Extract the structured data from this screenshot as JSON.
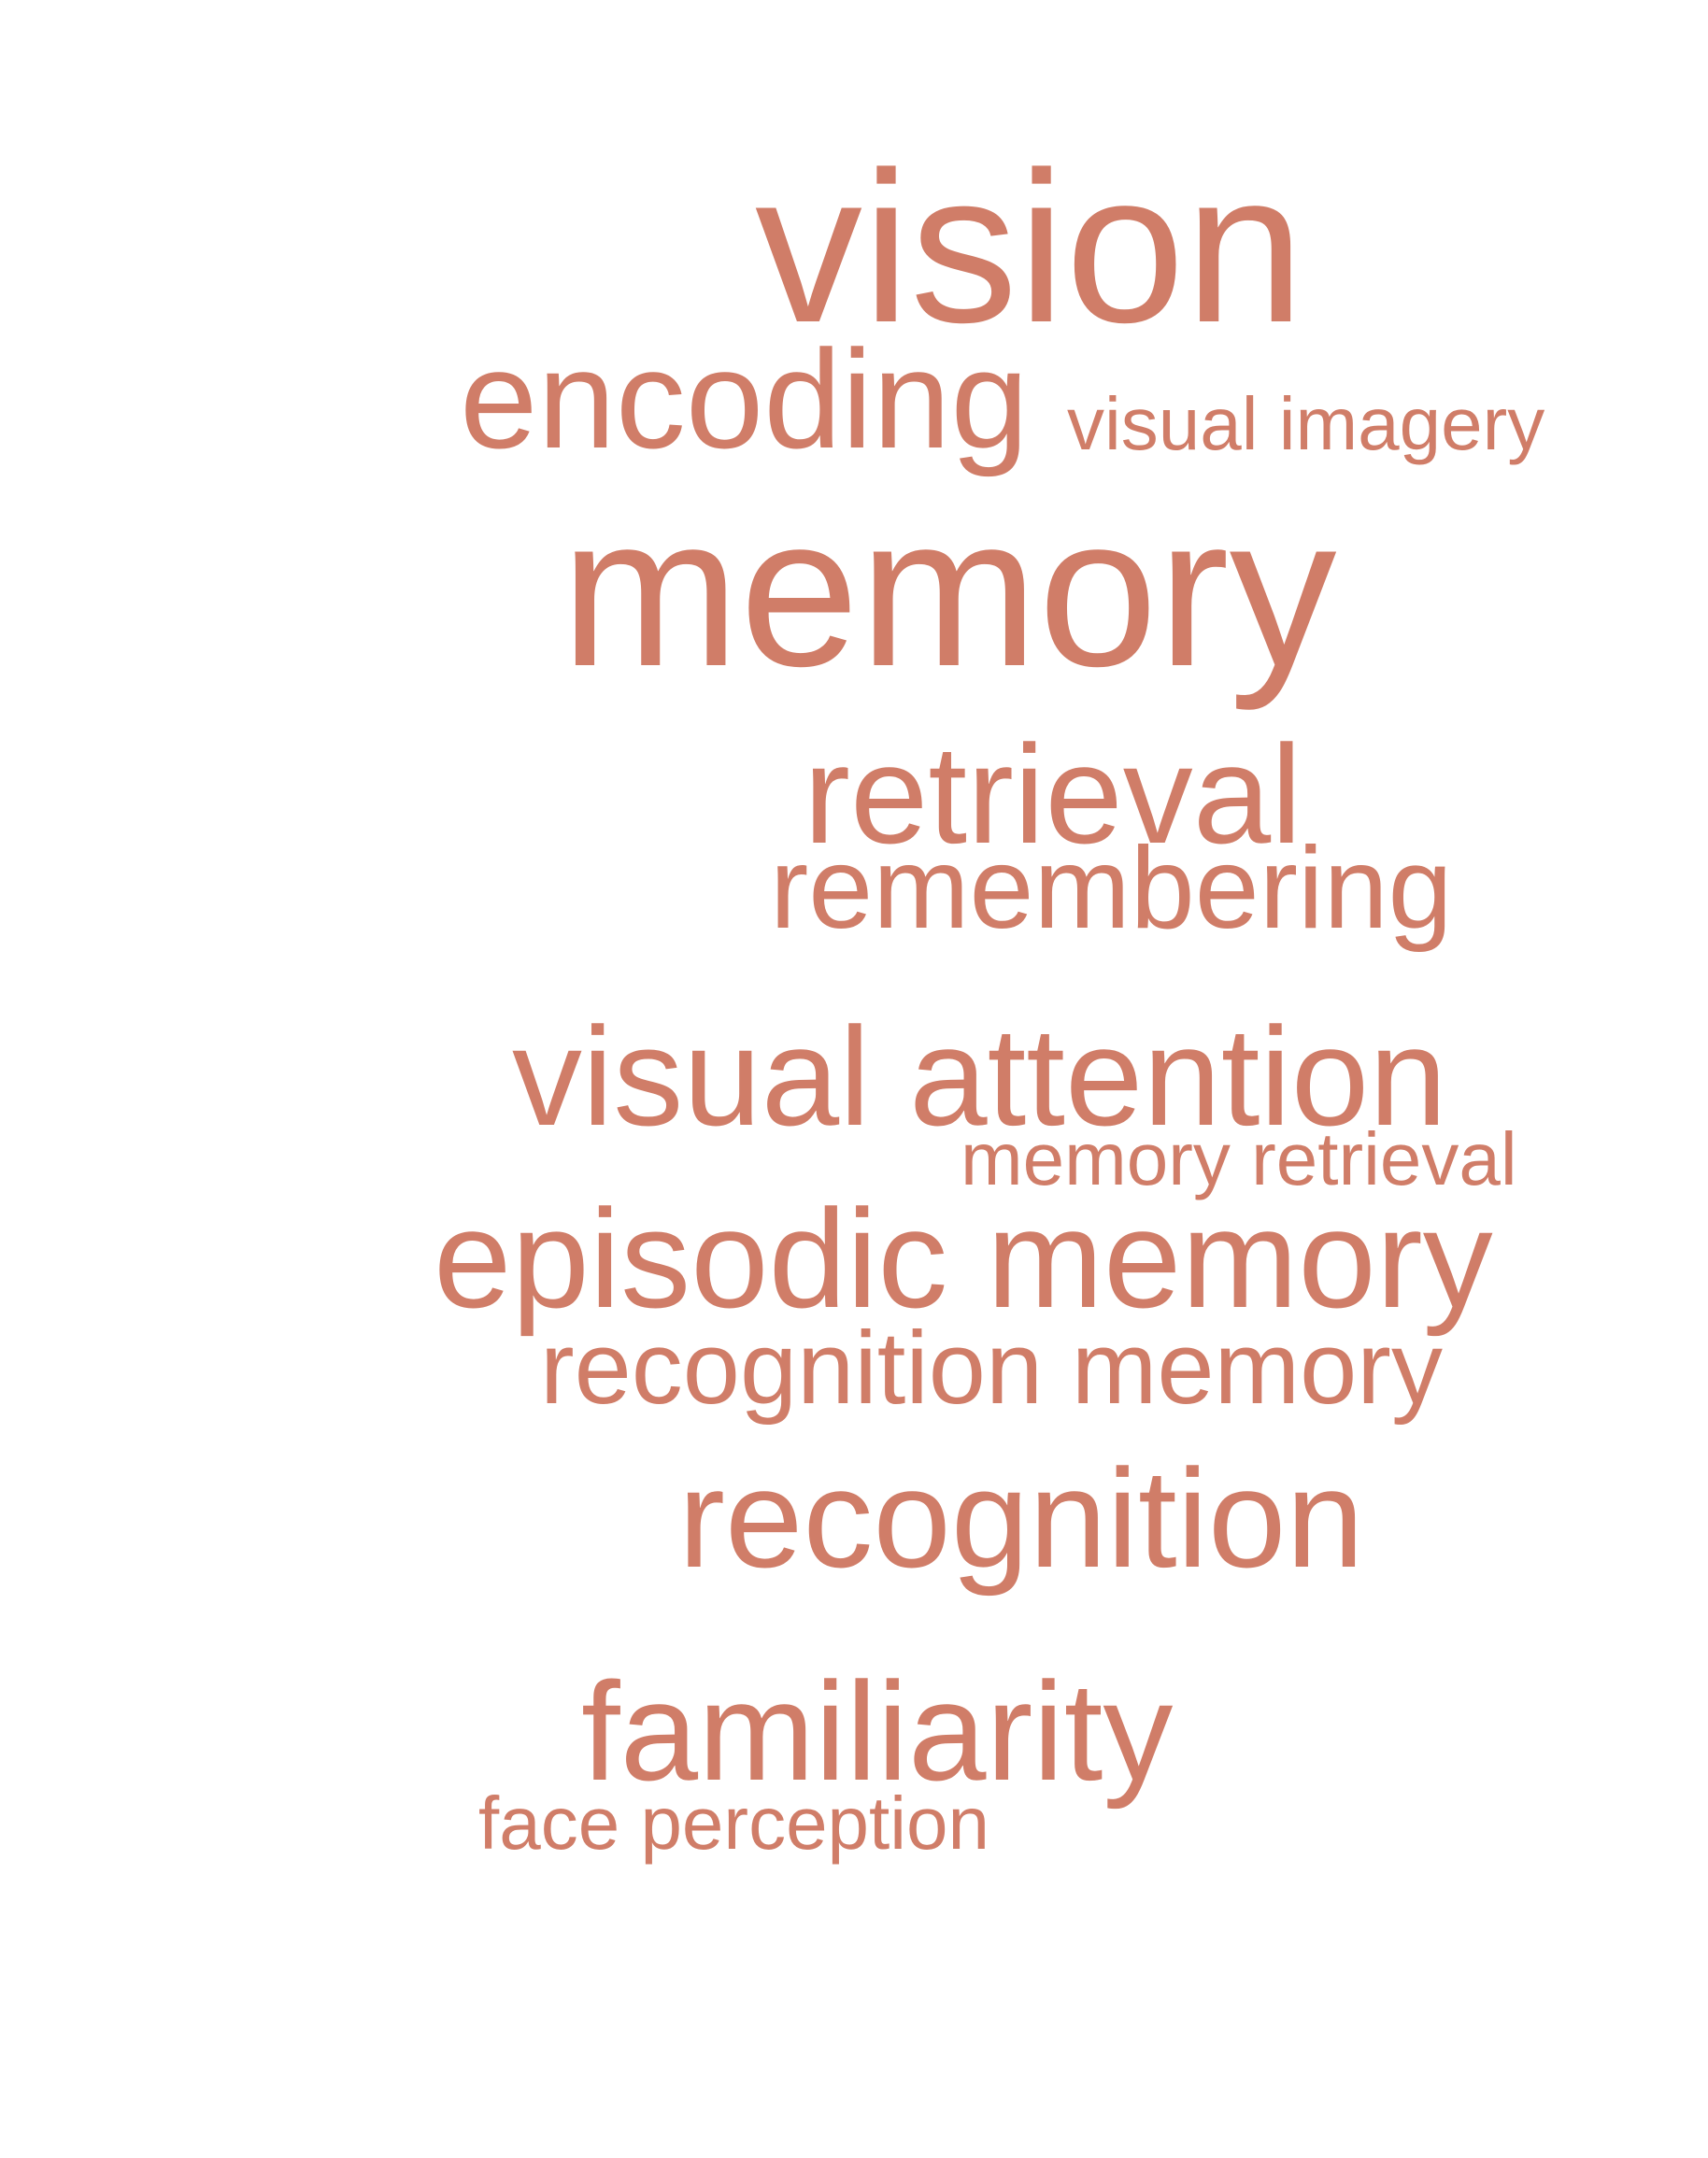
{
  "colors": {
    "background": "#ffffff",
    "word": "#d07d68"
  },
  "words": [
    "vision",
    "encoding",
    "visual imagery",
    "memory",
    "retrieval",
    "remembering",
    "visual attention",
    "memory retrieval",
    "episodic memory",
    "recognition memory",
    "recognition",
    "familiarity",
    "face perception"
  ]
}
